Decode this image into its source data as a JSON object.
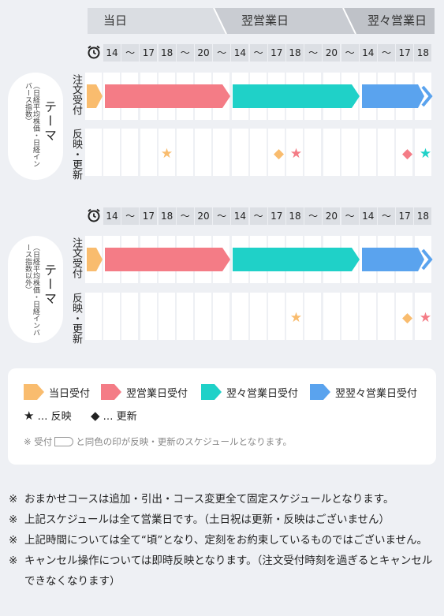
{
  "header": {
    "days": [
      "当日",
      "翌営業日",
      "翌々営業日"
    ]
  },
  "time_row": {
    "clock_icon": "alarm-clock-icon",
    "cells": [
      "14",
      "～",
      "17",
      "18",
      "～",
      "20",
      "～",
      "14",
      "～",
      "17",
      "18",
      "～",
      "20",
      "～",
      "14",
      "～",
      "17",
      "18"
    ]
  },
  "sections": [
    {
      "theme_title": "テーマ",
      "theme_sub": "（日経平均株価・日経インバース指数）",
      "order_label": "注文受付",
      "reflect_label": "反映・更新"
    },
    {
      "theme_title": "テーマ",
      "theme_sub": "（日経平均株価・日経インバース指数以外）",
      "order_label": "注文受付",
      "reflect_label": "反映・更新"
    }
  ],
  "colors": {
    "today": "#f9bc6e",
    "next": "#f47c86",
    "next2": "#1fd1c8",
    "next3": "#5aa3ee",
    "clock": "#222222"
  },
  "legend": {
    "items": [
      "当日受付",
      "翌営業日受付",
      "翌々営業日受付",
      "翌翌々営業日受付"
    ],
    "star": "… 反映",
    "diamond": "… 更新",
    "note_prefix": "※ 受付",
    "note_suffix": "と同色の印が反映・更新のスケジュールとなります。"
  },
  "notes": [
    "おまかせコースは追加・引出・コース変更全て固定スケジュールとなります。",
    "上記スケジュールは全て営業日です。（土日祝は更新・反映はございません）",
    "上記時間については全て“頃”となり、定刻をお約束しているものではございません。",
    "キャンセル操作については即時反映となります。（注文受付時刻を過ぎるとキャンセルできなくなります）"
  ],
  "note_mark": "※"
}
